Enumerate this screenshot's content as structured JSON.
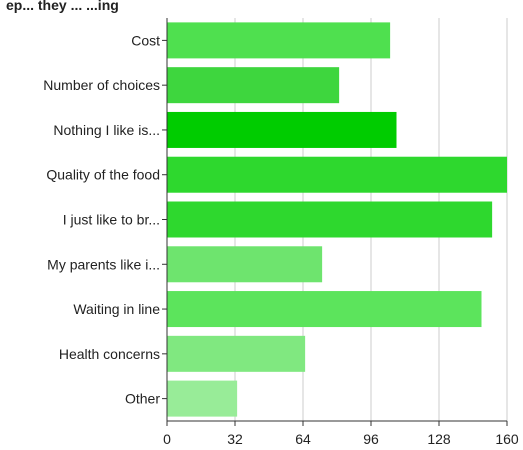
{
  "chart_data": {
    "type": "bar",
    "orientation": "horizontal",
    "title": "ep... they ... ...ing",
    "xlabel": "",
    "ylabel": "",
    "categories": [
      "Cost",
      "Number of choices",
      "Nothing I like is...",
      "Quality of the food",
      "I just like to br...",
      "My parents like i...",
      "Waiting in line",
      "Health concerns",
      "Other"
    ],
    "values": [
      105,
      81,
      108,
      160,
      153,
      73,
      148,
      65,
      33
    ],
    "bar_colors": [
      "#4fe04f",
      "#3ed63e",
      "#00cc00",
      "#2ed82e",
      "#2ed82e",
      "#6ee46e",
      "#5ce45c",
      "#80e880",
      "#98ec98"
    ],
    "xlim": [
      0,
      160
    ],
    "xticks": [
      "0",
      "32",
      "64",
      "96",
      "128",
      "160"
    ],
    "grid": true,
    "legend": "none"
  }
}
